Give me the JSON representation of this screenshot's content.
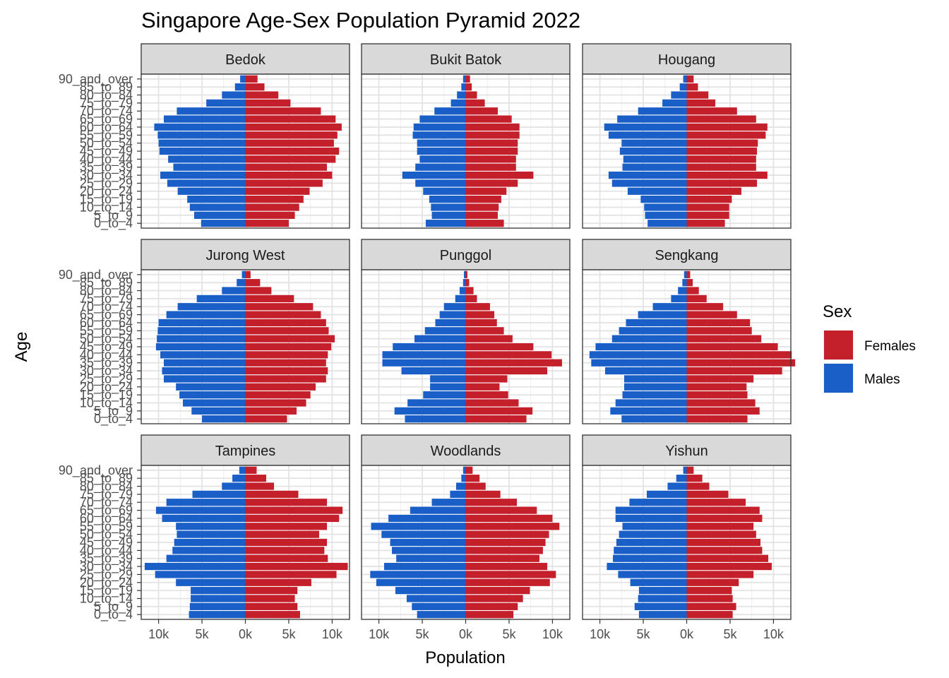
{
  "chart_data": {
    "type": "bar",
    "orientation": "horizontal",
    "title": "Singapore Age-Sex Population Pyramid 2022",
    "xlabel": "Population",
    "ylabel": "Age",
    "x_ticks": [
      "10k",
      "5k",
      "0k",
      "5k",
      "10k"
    ],
    "xlim": [
      -12000,
      12000
    ],
    "grid": true,
    "legend": {
      "title": "Sex",
      "position": "right",
      "entries": [
        {
          "label": "Females",
          "color": "#C4202C"
        },
        {
          "label": "Males",
          "color": "#1A5FC7"
        }
      ]
    },
    "age_groups": [
      "0_to_4",
      "5_to_9",
      "10_to_14",
      "15_to_19",
      "20_to_24",
      "25_to_29",
      "30_to_34",
      "35_to_39",
      "40_to_44",
      "45_to_49",
      "50_to_54",
      "55_to_59",
      "60_to_64",
      "65_to_69",
      "70_to_74",
      "75_to_79",
      "80_to_84",
      "85_to_89",
      "90_and_over"
    ],
    "facets": [
      {
        "name": "Bedok",
        "males": [
          5100,
          5900,
          6400,
          6700,
          7800,
          9000,
          9800,
          8300,
          8900,
          9900,
          10000,
          10100,
          10500,
          9400,
          7900,
          4500,
          2700,
          1200,
          600
        ],
        "females": [
          5000,
          5700,
          6200,
          6700,
          7400,
          8900,
          10000,
          9400,
          10400,
          10800,
          10200,
          10600,
          11100,
          10400,
          8700,
          5200,
          3800,
          2200,
          1400
        ]
      },
      {
        "name": "Bukit Batok",
        "males": [
          4600,
          3900,
          4000,
          4200,
          4900,
          5800,
          7300,
          5800,
          5300,
          5600,
          5600,
          6100,
          6000,
          5300,
          3600,
          1700,
          1000,
          500,
          300
        ],
        "females": [
          4400,
          3700,
          3800,
          4100,
          4700,
          6000,
          7800,
          5800,
          5800,
          6000,
          6000,
          6200,
          6200,
          5300,
          3700,
          2200,
          1300,
          700,
          500
        ]
      },
      {
        "name": "Hougang",
        "males": [
          4500,
          4800,
          4900,
          5300,
          6800,
          8600,
          9000,
          7400,
          7300,
          7700,
          7500,
          9000,
          9500,
          8000,
          5600,
          2800,
          1800,
          800,
          400
        ],
        "females": [
          4400,
          4900,
          4900,
          5200,
          6300,
          8100,
          9300,
          8000,
          8000,
          8100,
          8200,
          9100,
          9300,
          8000,
          5800,
          3300,
          2500,
          1300,
          800
        ]
      },
      {
        "name": "Jurong West",
        "males": [
          5000,
          6200,
          7200,
          7600,
          8000,
          9400,
          9600,
          9400,
          9800,
          10300,
          10200,
          10100,
          10000,
          9100,
          7800,
          5600,
          2700,
          1000,
          400
        ],
        "females": [
          4800,
          5900,
          7000,
          7500,
          8100,
          9300,
          9500,
          9300,
          9500,
          9900,
          10300,
          9600,
          9300,
          8700,
          7800,
          5600,
          3000,
          1700,
          600
        ]
      },
      {
        "name": "Punggol",
        "males": [
          7000,
          8200,
          6700,
          4900,
          4100,
          4100,
          7400,
          9600,
          9600,
          8400,
          5900,
          4700,
          3500,
          3000,
          2500,
          1200,
          700,
          300,
          200
        ],
        "females": [
          7000,
          7700,
          6100,
          4900,
          3900,
          4800,
          9400,
          11100,
          9900,
          7800,
          5400,
          4400,
          3600,
          3300,
          2800,
          1300,
          900,
          400,
          200
        ]
      },
      {
        "name": "Sengkang",
        "males": [
          7500,
          8800,
          8200,
          7400,
          7200,
          7200,
          9400,
          11000,
          11200,
          10500,
          8600,
          7800,
          7000,
          5600,
          3900,
          1800,
          1000,
          500,
          300
        ],
        "females": [
          7000,
          8400,
          7900,
          7000,
          6900,
          7700,
          11000,
          12500,
          12100,
          10500,
          8600,
          7500,
          7300,
          5800,
          4200,
          2300,
          1400,
          700,
          400
        ]
      },
      {
        "name": "Tampines",
        "males": [
          6500,
          6400,
          6300,
          6300,
          8000,
          10400,
          11600,
          9100,
          8400,
          8200,
          7900,
          8000,
          9600,
          10300,
          9100,
          6100,
          2700,
          1500,
          700
        ],
        "females": [
          6300,
          6000,
          5700,
          6000,
          7600,
          10500,
          11800,
          9500,
          9100,
          9400,
          8500,
          9400,
          10800,
          11200,
          9400,
          6100,
          3300,
          2400,
          1300
        ]
      },
      {
        "name": "Woodlands",
        "males": [
          5600,
          6200,
          6800,
          8100,
          10300,
          11000,
          9400,
          8000,
          8500,
          8700,
          9700,
          10900,
          8900,
          6400,
          3900,
          1800,
          1100,
          500,
          300
        ],
        "females": [
          5500,
          6000,
          6600,
          7400,
          9700,
          10400,
          9400,
          8500,
          8900,
          9200,
          9600,
          10800,
          10000,
          8200,
          5900,
          4000,
          2300,
          1600,
          800
        ]
      },
      {
        "name": "Yishun",
        "males": [
          5500,
          6000,
          5600,
          5500,
          6500,
          7900,
          9200,
          8500,
          8400,
          8100,
          7800,
          7400,
          8200,
          8200,
          6600,
          4600,
          2200,
          1200,
          400
        ],
        "females": [
          5300,
          5700,
          5300,
          5200,
          6000,
          7700,
          9800,
          9400,
          8700,
          8500,
          8000,
          7700,
          8700,
          8400,
          6800,
          4800,
          2600,
          1800,
          800
        ]
      }
    ]
  }
}
